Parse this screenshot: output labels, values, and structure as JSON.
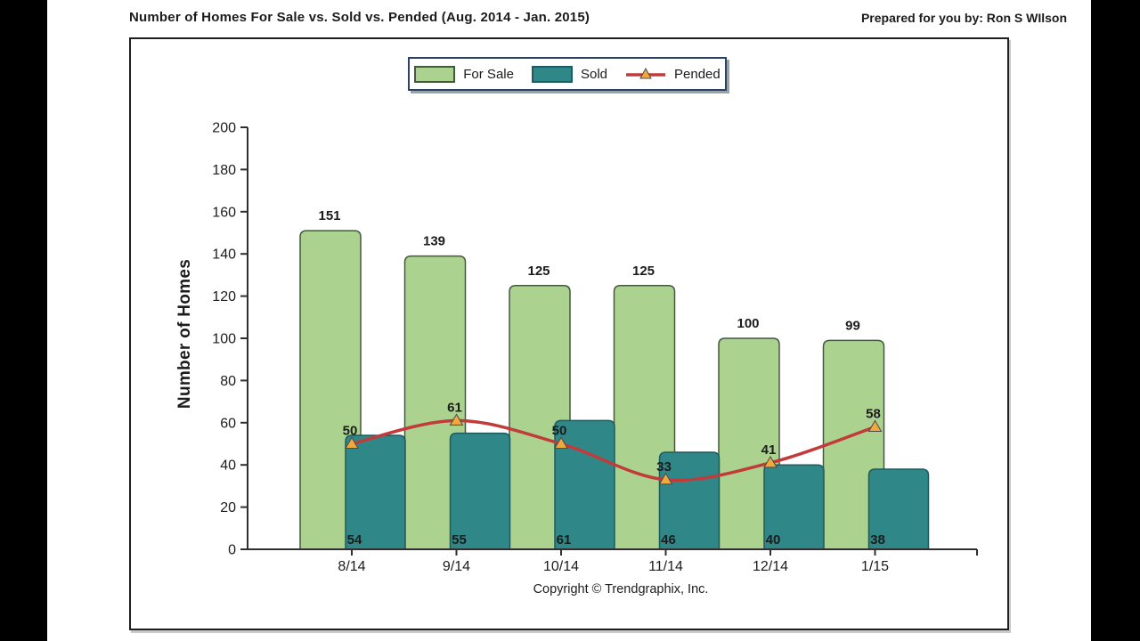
{
  "header": {
    "title": "Number of Homes For Sale vs. Sold vs. Pended (Aug. 2014 - Jan. 2015)",
    "prepared_by": "Prepared for you by: Ron S WIlson"
  },
  "legend": {
    "items": [
      {
        "label": "For Sale"
      },
      {
        "label": "Sold"
      },
      {
        "label": "Pended"
      }
    ]
  },
  "chart_data": {
    "type": "bar+line",
    "title": "Number of Homes For Sale vs. Sold vs. Pended (Aug. 2014 - Jan. 2015)",
    "categories": [
      "8/14",
      "9/14",
      "10/14",
      "11/14",
      "12/14",
      "1/15"
    ],
    "series": [
      {
        "name": "For Sale",
        "type": "bar",
        "color": "#abd38f",
        "border": "#44583f",
        "values": [
          151,
          139,
          125,
          125,
          100,
          99
        ]
      },
      {
        "name": "Sold",
        "type": "bar",
        "color": "#2f8787",
        "border": "#1f5a5e",
        "values": [
          54,
          55,
          61,
          46,
          40,
          38
        ]
      },
      {
        "name": "Pended",
        "type": "line",
        "color": "#c23b3b",
        "marker": "triangle",
        "marker_color": "#f2a93b",
        "values": [
          50,
          61,
          50,
          33,
          41,
          58
        ]
      }
    ],
    "xlabel": "",
    "ylabel": "Number of Homes",
    "ylim": [
      0,
      200
    ],
    "ytick_step": 20,
    "grid": false,
    "legend_position": "top"
  },
  "footer": {
    "copyright": "Copyright © Trendgraphix, Inc."
  }
}
